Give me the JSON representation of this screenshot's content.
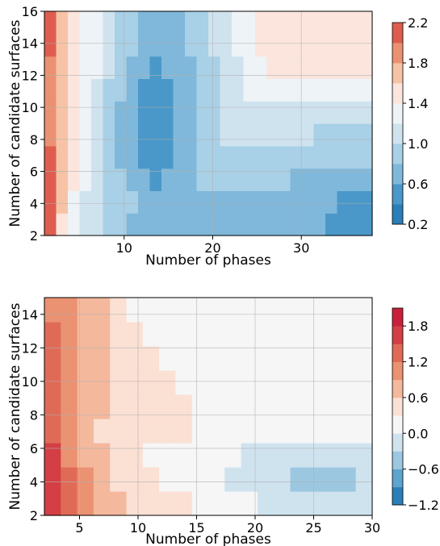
{
  "chart_data": [
    {
      "type": "heatmap",
      "title": "",
      "xlabel": "Number of phases",
      "ylabel": "Number of candidate surfaces",
      "xlim": [
        1,
        38
      ],
      "ylim": [
        2,
        16
      ],
      "xticks": [
        "10",
        "20",
        "30"
      ],
      "yticks": [
        "2",
        "4",
        "6",
        "8",
        "10",
        "12",
        "14",
        "16"
      ],
      "grid": true,
      "colorbar": {
        "ticks": [
          "0.2",
          "0.6",
          "1.0",
          "1.4",
          "1.8",
          "2.2"
        ],
        "levels": [
          0.2,
          0.4,
          0.6,
          0.8,
          1.0,
          1.2,
          1.4,
          1.6,
          1.8,
          2.0,
          2.2
        ],
        "colors": [
          "#2a7fb8",
          "#4a98c9",
          "#7fb8da",
          "#a8d0e6",
          "#cfe3ef",
          "#eef3f7",
          "#fbe5dc",
          "#f7c3a6",
          "#eb9172",
          "#de5d4f",
          "#d0293a"
        ]
      },
      "z_grid": [
        [
          2.1,
          1.5,
          1.2,
          1.1,
          1.0,
          0.9,
          0.8,
          0.7,
          0.7,
          0.7,
          0.7,
          0.7,
          0.7,
          0.7,
          0.7,
          0.6,
          0.6,
          0.6,
          0.6,
          0.6,
          0.6,
          0.6,
          0.6,
          0.6,
          0.5,
          0.5,
          0.5,
          0.5
        ],
        [
          2.1,
          1.6,
          1.3,
          1.1,
          1.0,
          0.9,
          0.8,
          0.8,
          0.7,
          0.7,
          0.7,
          0.7,
          0.6,
          0.6,
          0.6,
          0.6,
          0.7,
          0.7,
          0.7,
          0.7,
          0.7,
          0.7,
          0.6,
          0.6,
          0.6,
          0.5,
          0.5,
          0.5
        ],
        [
          2.0,
          1.7,
          1.4,
          1.2,
          1.0,
          0.9,
          0.8,
          0.7,
          0.6,
          0.5,
          0.6,
          0.7,
          0.7,
          0.8,
          0.8,
          0.8,
          0.8,
          0.8,
          0.8,
          0.8,
          0.8,
          0.7,
          0.7,
          0.7,
          0.7,
          0.7,
          0.6,
          0.6
        ],
        [
          2.0,
          1.7,
          1.4,
          1.2,
          1.0,
          0.8,
          0.7,
          0.6,
          0.5,
          0.4,
          0.5,
          0.6,
          0.7,
          0.8,
          0.9,
          0.9,
          0.9,
          0.9,
          0.9,
          0.9,
          0.9,
          0.9,
          0.8,
          0.8,
          0.8,
          0.8,
          0.8,
          0.8
        ],
        [
          1.9,
          1.6,
          1.4,
          1.2,
          1.0,
          0.8,
          0.7,
          0.6,
          0.5,
          0.4,
          0.5,
          0.6,
          0.7,
          0.8,
          0.9,
          1.0,
          1.0,
          1.0,
          1.0,
          1.0,
          1.0,
          1.0,
          1.0,
          0.9,
          0.9,
          0.9,
          0.9,
          0.9
        ],
        [
          1.9,
          1.6,
          1.4,
          1.2,
          1.1,
          0.9,
          0.7,
          0.6,
          0.5,
          0.4,
          0.5,
          0.6,
          0.7,
          0.8,
          0.9,
          1.0,
          1.1,
          1.1,
          1.1,
          1.1,
          1.1,
          1.0,
          1.0,
          1.0,
          1.0,
          1.0,
          1.0,
          1.0
        ],
        [
          1.9,
          1.6,
          1.4,
          1.3,
          1.1,
          0.9,
          0.8,
          0.6,
          0.5,
          0.4,
          0.5,
          0.6,
          0.7,
          0.8,
          0.9,
          1.0,
          1.1,
          1.2,
          1.2,
          1.2,
          1.2,
          1.2,
          1.2,
          1.2,
          1.3,
          1.3,
          1.3,
          1.3
        ],
        [
          1.9,
          1.6,
          1.4,
          1.3,
          1.2,
          1.0,
          0.8,
          0.7,
          0.6,
          0.5,
          0.6,
          0.6,
          0.7,
          0.8,
          0.9,
          1.0,
          1.1,
          1.2,
          1.3,
          1.4,
          1.4,
          1.4,
          1.4,
          1.4,
          1.4,
          1.4,
          1.4,
          1.4
        ],
        [
          2.0,
          1.6,
          1.5,
          1.3,
          1.2,
          1.0,
          0.9,
          0.8,
          0.7,
          0.6,
          0.6,
          0.7,
          0.8,
          0.9,
          1.0,
          1.1,
          1.2,
          1.3,
          1.4,
          1.4,
          1.4,
          1.4,
          1.4,
          1.4,
          1.4,
          1.4,
          1.4,
          1.4
        ],
        [
          2.0,
          1.6,
          1.5,
          1.3,
          1.2,
          1.0,
          0.9,
          0.8,
          0.7,
          0.7,
          0.7,
          0.7,
          0.8,
          0.9,
          1.0,
          1.1,
          1.2,
          1.3,
          1.4,
          1.5,
          1.5,
          1.4,
          1.4,
          1.4,
          1.4,
          1.4,
          1.4,
          1.4
        ]
      ]
    },
    {
      "type": "heatmap",
      "title": "",
      "xlabel": "Number of phases",
      "ylabel": "Number of candidate surfaces",
      "xlim": [
        2,
        30
      ],
      "ylim": [
        2,
        15
      ],
      "xticks": [
        "5",
        "10",
        "15",
        "20",
        "25",
        "30"
      ],
      "yticks": [
        "2",
        "4",
        "6",
        "8",
        "10",
        "12",
        "14"
      ],
      "grid": true,
      "colorbar": {
        "ticks": [
          "−1.2",
          "−0.6",
          "0.0",
          "0.6",
          "1.2",
          "1.8"
        ],
        "levels": [
          -1.2,
          -0.9,
          -0.6,
          -0.3,
          0.0,
          0.3,
          0.6,
          0.9,
          1.2,
          1.5,
          1.8,
          2.1
        ],
        "colors": [
          "#2a7fb8",
          "#5fa3cf",
          "#9cc7e0",
          "#cfe3ef",
          "#f6f6f6",
          "#fbe0d4",
          "#f4b89d",
          "#ea9272",
          "#df6b57",
          "#d33f44",
          "#c8203b"
        ]
      },
      "z_grid": [
        [
          1.7,
          1.3,
          1.0,
          0.8,
          0.6,
          0.5,
          0.4,
          0.3,
          0.3,
          0.2,
          0.1,
          0.1,
          0.0,
          -0.1,
          -0.1,
          -0.2,
          -0.2,
          -0.3,
          -0.3,
          -0.3
        ],
        [
          1.6,
          1.2,
          0.9,
          0.7,
          0.5,
          0.4,
          0.3,
          0.2,
          0.2,
          0.1,
          0.0,
          -0.1,
          -0.1,
          -0.2,
          -0.3,
          -0.4,
          -0.4,
          -0.4,
          -0.4,
          -0.3
        ],
        [
          1.5,
          1.1,
          0.8,
          0.6,
          0.4,
          0.3,
          0.2,
          0.1,
          0.0,
          0.0,
          0.0,
          0.0,
          -0.1,
          -0.1,
          -0.2,
          -0.2,
          -0.2,
          -0.2,
          -0.2,
          -0.2
        ],
        [
          1.4,
          1.0,
          0.7,
          0.5,
          0.4,
          0.3,
          0.3,
          0.3,
          0.3,
          0.2,
          0.1,
          0.0,
          0.0,
          0.0,
          0.0,
          0.0,
          0.0,
          0.0,
          0.0,
          0.0
        ],
        [
          1.4,
          1.0,
          0.7,
          0.6,
          0.5,
          0.4,
          0.4,
          0.3,
          0.3,
          0.2,
          0.1,
          0.0,
          0.0,
          0.0,
          0.0,
          0.0,
          0.0,
          0.0,
          0.0,
          0.0
        ],
        [
          1.3,
          1.0,
          0.8,
          0.6,
          0.5,
          0.4,
          0.4,
          0.3,
          0.2,
          0.1,
          0.0,
          0.0,
          0.0,
          0.0,
          0.0,
          0.0,
          0.0,
          0.0,
          0.0,
          0.0
        ],
        [
          1.3,
          1.0,
          0.8,
          0.6,
          0.5,
          0.4,
          0.3,
          0.2,
          0.1,
          0.0,
          0.0,
          0.0,
          0.0,
          0.0,
          0.0,
          0.0,
          0.0,
          0.0,
          0.0,
          0.0
        ],
        [
          1.2,
          1.0,
          0.8,
          0.6,
          0.5,
          0.3,
          0.2,
          0.1,
          0.0,
          0.0,
          0.0,
          0.0,
          0.0,
          0.0,
          0.0,
          0.0,
          0.0,
          0.0,
          0.0,
          0.0
        ],
        [
          1.1,
          0.9,
          0.8,
          0.6,
          0.4,
          0.2,
          0.1,
          0.0,
          0.0,
          0.0,
          0.0,
          0.0,
          0.0,
          0.0,
          0.0,
          0.0,
          0.0,
          0.0,
          0.0,
          0.0
        ]
      ]
    }
  ]
}
